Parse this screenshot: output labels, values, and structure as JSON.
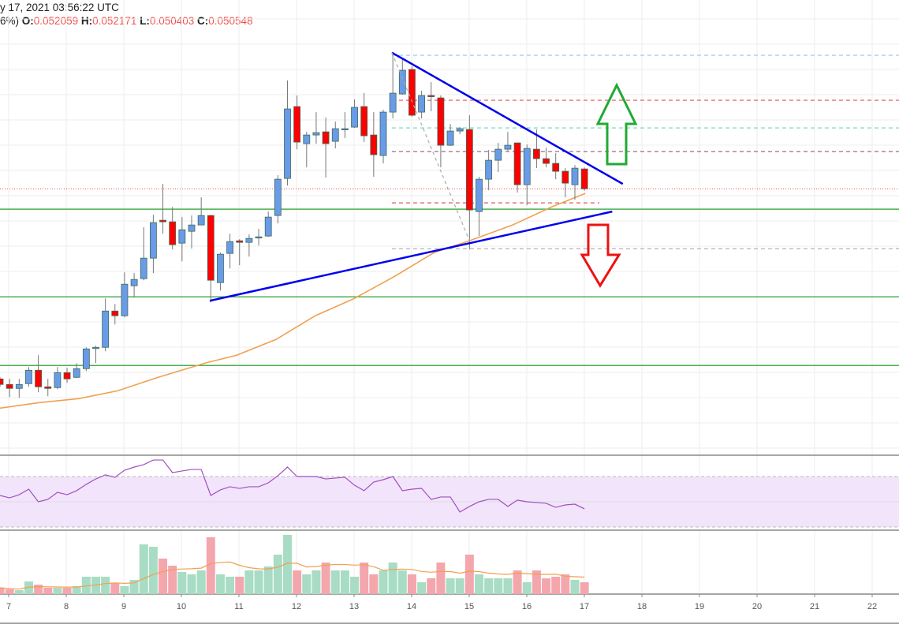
{
  "header": {
    "datetime": "y 17, 2021 03:56:22 UTC",
    "change_fragment": "6%)",
    "open_label": "O:",
    "open": "0.052059",
    "high_label": "H:",
    "high": "0.052171",
    "low_label": "L:",
    "low": "0.050403",
    "close_label": "C:",
    "close": "0.050548"
  },
  "colors": {
    "bull": "#6a9be8",
    "bear": "#ff0000",
    "candle_border": "#3d6b5a",
    "vol_bull": "#a8dcc4",
    "vol_bear": "#f4a6ad",
    "ma": "#f0a050",
    "support": "#4caf50",
    "trendline": "#0000ee",
    "rsi": "#a050c0",
    "rsi_band": "#f2e4fb"
  },
  "chart_data": {
    "type": "candlestick",
    "title": "",
    "ylim": [
      0.0303,
      0.0649
    ],
    "x_ticks": [
      "7",
      "8",
      "9",
      "10",
      "11",
      "12",
      "13",
      "14",
      "15",
      "16",
      "17",
      "18",
      "19",
      "20",
      "21",
      "22"
    ],
    "candles_ohlc": [
      [
        0.0361,
        0.03622,
        0.0355,
        0.03568
      ],
      [
        0.03568,
        0.0361,
        0.03472,
        0.03538
      ],
      [
        0.03538,
        0.0361,
        0.03466,
        0.03568
      ],
      [
        0.03574,
        0.037,
        0.0355,
        0.03676
      ],
      [
        0.03676,
        0.0379,
        0.03508,
        0.0355
      ],
      [
        0.0355,
        0.0361,
        0.03478,
        0.03538
      ],
      [
        0.03544,
        0.037,
        0.03532,
        0.03658
      ],
      [
        0.03658,
        0.03694,
        0.0358,
        0.0361
      ],
      [
        0.03622,
        0.0373,
        0.03616,
        0.03688
      ],
      [
        0.03688,
        0.0385,
        0.0367,
        0.03838
      ],
      [
        0.03844,
        0.03862,
        0.0373,
        0.0385
      ],
      [
        0.0385,
        0.04222,
        0.0382,
        0.04126
      ],
      [
        0.04126,
        0.0418,
        0.04024,
        0.0409
      ],
      [
        0.0409,
        0.0442,
        0.04078,
        0.0433
      ],
      [
        0.04318,
        0.04414,
        0.04228,
        0.04366
      ],
      [
        0.04372,
        0.04762,
        0.0436,
        0.04528
      ],
      [
        0.04528,
        0.04858,
        0.04414,
        0.04798
      ],
      [
        0.04816,
        0.05092,
        0.04714,
        0.04804
      ],
      [
        0.04804,
        0.04918,
        0.04594,
        0.0463
      ],
      [
        0.04642,
        0.0484,
        0.04504,
        0.04744
      ],
      [
        0.04732,
        0.04852,
        0.046,
        0.0478
      ],
      [
        0.0478,
        0.0499,
        0.0478,
        0.04852
      ],
      [
        0.04852,
        0.04858,
        0.04192,
        0.0436
      ],
      [
        0.04342,
        0.0457,
        0.04282,
        0.04558
      ],
      [
        0.04564,
        0.04714,
        0.0445,
        0.04654
      ],
      [
        0.0466,
        0.04672,
        0.04474,
        0.04648
      ],
      [
        0.04648,
        0.04708,
        0.0454,
        0.04678
      ],
      [
        0.04684,
        0.0475,
        0.04624,
        0.0469
      ],
      [
        0.04696,
        0.04882,
        0.0469,
        0.0484
      ],
      [
        0.04852,
        0.05158,
        0.04792,
        0.05128
      ],
      [
        0.05134,
        0.05878,
        0.0508,
        0.05662
      ],
      [
        0.0568,
        0.05764,
        0.05356,
        0.0541
      ],
      [
        0.05398,
        0.05488,
        0.05218,
        0.05464
      ],
      [
        0.05464,
        0.05638,
        0.05398,
        0.05482
      ],
      [
        0.05488,
        0.05596,
        0.0514,
        0.05398
      ],
      [
        0.05416,
        0.05566,
        0.05362,
        0.05512
      ],
      [
        0.05506,
        0.05638,
        0.0544,
        0.05512
      ],
      [
        0.05524,
        0.05734,
        0.05518,
        0.05674
      ],
      [
        0.0568,
        0.05782,
        0.0541,
        0.05458
      ],
      [
        0.05464,
        0.05638,
        0.05146,
        0.05314
      ],
      [
        0.05308,
        0.05656,
        0.05248,
        0.05638
      ],
      [
        0.05638,
        0.06094,
        0.0559,
        0.05782
      ],
      [
        0.05776,
        0.06046,
        0.0577,
        0.05956
      ],
      [
        0.05962,
        0.05986,
        0.05602,
        0.05614
      ],
      [
        0.05638,
        0.058,
        0.0559,
        0.05764
      ],
      [
        0.05764,
        0.05866,
        0.05644,
        0.05758
      ],
      [
        0.05746,
        0.05764,
        0.05218,
        0.05386
      ],
      [
        0.05386,
        0.05548,
        0.0538,
        0.05494
      ],
      [
        0.05494,
        0.05524,
        0.0547,
        0.05512
      ],
      [
        0.05506,
        0.05614,
        0.04594,
        0.04894
      ],
      [
        0.04882,
        0.05146,
        0.04696,
        0.05128
      ],
      [
        0.05128,
        0.0535,
        0.05044,
        0.05272
      ],
      [
        0.05272,
        0.05404,
        0.05182,
        0.05356
      ],
      [
        0.05356,
        0.05488,
        0.05344,
        0.05386
      ],
      [
        0.05404,
        0.05404,
        0.05026,
        0.05086
      ],
      [
        0.05086,
        0.05392,
        0.0493,
        0.05362
      ],
      [
        0.05356,
        0.05506,
        0.05212,
        0.05284
      ],
      [
        0.05284,
        0.05368,
        0.05218,
        0.05248
      ],
      [
        0.05248,
        0.05326,
        0.05128,
        0.05188
      ],
      [
        0.05188,
        0.05212,
        0.0499,
        0.05098
      ],
      [
        0.05086,
        0.05236,
        0.04972,
        0.05212
      ],
      [
        0.052059,
        0.052171,
        0.050403,
        0.050548
      ]
    ],
    "moving_average": [
      [
        0,
        0.03388
      ],
      [
        4.1,
        0.0343
      ],
      [
        8.2,
        0.0346
      ],
      [
        12.3,
        0.0352
      ],
      [
        16.5,
        0.03622
      ],
      [
        21.4,
        0.0373
      ],
      [
        24.7,
        0.0379
      ],
      [
        28.8,
        0.0391
      ],
      [
        32.9,
        0.0409
      ],
      [
        37,
        0.04222
      ],
      [
        41.2,
        0.0439
      ],
      [
        45.3,
        0.0457
      ],
      [
        49,
        0.0466
      ],
      [
        53.5,
        0.0478
      ],
      [
        57.6,
        0.04918
      ],
      [
        61.1,
        0.0502
      ]
    ],
    "support_lines": [
      0.049,
      0.04234,
      0.03712
    ],
    "current_price": 0.050548,
    "levels": [
      {
        "price": 0.0607,
        "color": "#8fcbe8",
        "full": true
      },
      {
        "price": 0.05728,
        "color": "#e05555",
        "full": true
      },
      {
        "price": 0.05518,
        "color": "#6fdcc0",
        "full": true
      },
      {
        "price": 0.05338,
        "color": "#9a6a8a",
        "full": true
      },
      {
        "price": 0.04948,
        "color": "#e05555",
        "full": false
      },
      {
        "price": 0.046,
        "color": "#aaaaaa",
        "full": true
      }
    ],
    "level_start_index": 40.9,
    "trendlines": [
      {
        "from": [
          40.9,
          0.0609
        ],
        "to": [
          65.0,
          0.05092
        ],
        "style": "solid"
      },
      {
        "from": [
          21.9,
          0.04204
        ],
        "to": [
          63.9,
          0.04882
        ],
        "style": "solid"
      },
      {
        "from": [
          40.9,
          0.0609
        ],
        "to": [
          49,
          0.0466
        ],
        "style": "dashed"
      }
    ],
    "rsi": {
      "ylim": [
        0,
        100
      ],
      "band": [
        30,
        70
      ],
      "values": [
        55,
        53.1,
        55.6,
        60,
        50,
        51.9,
        57.5,
        55.6,
        58.8,
        63.8,
        68.1,
        71.3,
        69.4,
        75,
        77.5,
        79.4,
        83.1,
        83.1,
        73.1,
        74.4,
        75.6,
        75.6,
        55,
        59.4,
        61.9,
        60.6,
        61.9,
        61.9,
        65,
        70.6,
        77.5,
        70,
        70,
        70,
        68.1,
        68.8,
        69.4,
        63.1,
        58.8,
        65.6,
        67.5,
        70,
        58.8,
        60,
        60.6,
        51.9,
        53.8,
        53.8,
        41.9,
        46.3,
        50,
        51.9,
        51.9,
        46.3,
        51.3,
        50,
        49.4,
        48.8,
        45.6,
        47.5,
        48.1,
        44.4
      ]
    },
    "volume": [
      8,
      6,
      5,
      16,
      12,
      8,
      8,
      8,
      10,
      22,
      22,
      22,
      14,
      10,
      18,
      63,
      60,
      45,
      36,
      28,
      25,
      30,
      72,
      25,
      22,
      22,
      30,
      30,
      35,
      50,
      75,
      30,
      25,
      30,
      40,
      30,
      30,
      22,
      40,
      25,
      30,
      40,
      30,
      25,
      15,
      20,
      40,
      20,
      20,
      50,
      25,
      20,
      20,
      20,
      30,
      15,
      30,
      20,
      22,
      25,
      18,
      15
    ]
  }
}
